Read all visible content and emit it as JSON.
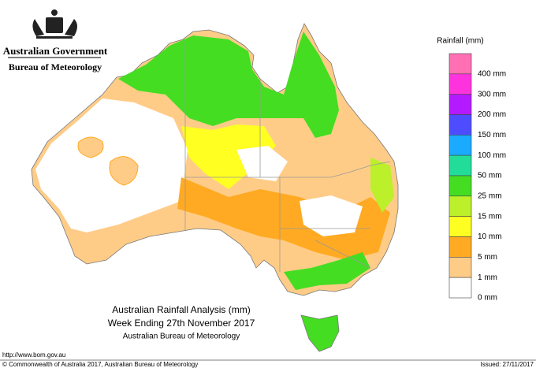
{
  "header": {
    "government": "Australian Government",
    "agency": "Bureau of Meteorology"
  },
  "legend": {
    "title": "Rainfall (mm)",
    "colors": [
      "#ff6fb4",
      "#ff33dd",
      "#b31aff",
      "#4d4dff",
      "#1aaaff",
      "#22dd99",
      "#44dd22",
      "#bbf02a",
      "#ffff22",
      "#ffaa22",
      "#ffcc88",
      "#ffffff"
    ],
    "labels": [
      "400 mm",
      "300 mm",
      "200 mm",
      "150 mm",
      "100 mm",
      "50 mm",
      "25 mm",
      "15 mm",
      "10 mm",
      "5 mm",
      "1 mm",
      "0 mm"
    ]
  },
  "caption": {
    "title": "Australian Rainfall Analysis (mm)",
    "period": "Week Ending 27th November 2017",
    "source": "Australian Bureau of Meteorology"
  },
  "footer": {
    "url": "http://www.bom.gov.au",
    "copyright": "© Commonwealth of Australia 2017, Australian Bureau of Meteorology",
    "issued": "Issued: 27/11/2017"
  }
}
